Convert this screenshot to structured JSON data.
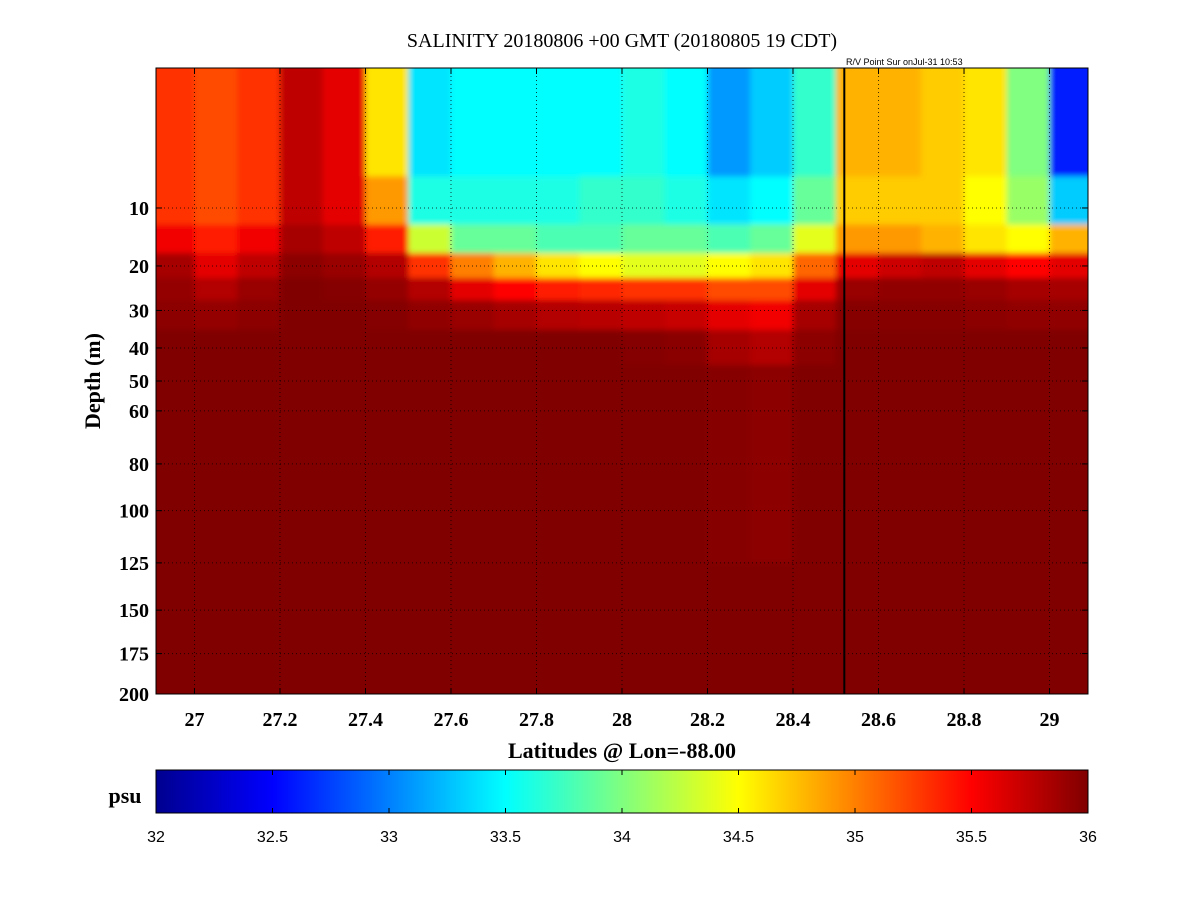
{
  "chart_data": {
    "type": "heatmap",
    "title": "SALINITY 20180806 +00 GMT (20180805 19 CDT)",
    "annotation": "R/V Point Sur onJul-31 10:53",
    "xlabel": "Latitudes @ Lon=-88.00",
    "ylabel": "Depth (m)",
    "xlim": [
      26.91,
      29.09
    ],
    "ylim": [
      200,
      0
    ],
    "y_scale": "sqrt",
    "grid": true,
    "x_ticks": [
      27,
      27.2,
      27.4,
      27.6,
      27.8,
      28,
      28.2,
      28.4,
      28.6,
      28.8,
      29
    ],
    "x_tick_labels": [
      "27",
      "27.2",
      "27.4",
      "27.6",
      "27.8",
      "28",
      "28.2",
      "28.4",
      "28.6",
      "28.8",
      "29"
    ],
    "y_ticks": [
      10,
      20,
      30,
      40,
      50,
      60,
      80,
      100,
      125,
      150,
      175,
      200
    ],
    "y_tick_labels": [
      "10",
      "20",
      "30",
      "40",
      "50",
      "60",
      "80",
      "100",
      "125",
      "150",
      "175",
      "200"
    ],
    "vertical_line_lat": 28.52,
    "colorbar": {
      "label": "psu",
      "range": [
        32,
        36
      ],
      "ticks": [
        32,
        32.5,
        33,
        33.5,
        34,
        34.5,
        35,
        35.5,
        36
      ],
      "tick_labels": [
        "32",
        "32.5",
        "33",
        "33.5",
        "34",
        "34.5",
        "35",
        "35.5",
        "36"
      ],
      "colormap": "jet"
    },
    "field": {
      "lat": [
        26.95,
        27.05,
        27.15,
        27.25,
        27.35,
        27.45,
        27.55,
        27.65,
        27.75,
        27.85,
        27.95,
        28.05,
        28.15,
        28.25,
        28.35,
        28.45,
        28.55,
        28.65,
        28.75,
        28.85,
        28.95,
        29.05
      ],
      "depth": [
        2,
        10,
        15,
        20,
        25,
        30,
        40,
        50,
        200
      ],
      "salinity": [
        [
          35.3,
          35.2,
          35.3,
          35.75,
          35.6,
          34.6,
          33.4,
          33.5,
          33.5,
          33.5,
          33.5,
          33.6,
          33.5,
          33.1,
          33.3,
          33.7,
          34.8,
          34.8,
          34.7,
          34.6,
          34.0,
          32.6
        ],
        [
          35.3,
          35.2,
          35.3,
          35.75,
          35.6,
          34.9,
          33.6,
          33.6,
          33.6,
          33.6,
          33.7,
          33.7,
          33.6,
          33.4,
          33.5,
          33.9,
          34.7,
          34.7,
          34.7,
          34.5,
          34.1,
          33.3
        ],
        [
          35.55,
          35.4,
          35.55,
          35.85,
          35.75,
          35.4,
          34.3,
          33.9,
          33.9,
          33.8,
          33.8,
          33.9,
          33.9,
          33.8,
          33.9,
          34.4,
          34.9,
          34.9,
          34.8,
          34.6,
          34.5,
          34.8
        ],
        [
          35.85,
          35.6,
          35.75,
          35.95,
          35.9,
          35.8,
          35.3,
          35.0,
          34.8,
          34.6,
          34.5,
          34.4,
          34.4,
          34.5,
          34.6,
          35.1,
          35.6,
          35.7,
          35.75,
          35.6,
          35.5,
          35.6
        ],
        [
          35.92,
          35.8,
          35.9,
          36,
          35.98,
          35.92,
          35.8,
          35.6,
          35.5,
          35.4,
          35.35,
          35.3,
          35.3,
          35.2,
          35.2,
          35.6,
          35.9,
          35.93,
          35.93,
          35.9,
          35.85,
          35.85
        ],
        [
          35.95,
          35.92,
          35.95,
          36,
          36,
          35.98,
          35.93,
          35.9,
          35.85,
          35.8,
          35.78,
          35.75,
          35.72,
          35.6,
          35.55,
          35.85,
          35.97,
          35.97,
          35.97,
          35.95,
          35.93,
          35.93
        ],
        [
          36,
          36,
          36,
          36,
          36,
          36,
          36,
          36,
          36,
          36,
          36,
          35.98,
          35.96,
          35.85,
          35.8,
          35.95,
          36,
          36,
          36,
          36,
          36,
          36
        ],
        [
          36,
          36,
          36,
          36,
          36,
          36,
          36,
          36,
          36,
          36,
          36,
          36,
          36,
          35.97,
          35.95,
          36,
          36,
          36,
          36,
          36,
          36,
          36
        ],
        [
          36,
          36,
          36,
          36,
          36,
          36,
          36,
          36,
          36,
          36,
          36,
          36,
          36,
          36,
          36,
          36,
          36,
          36,
          36,
          36,
          36,
          36
        ]
      ]
    }
  }
}
